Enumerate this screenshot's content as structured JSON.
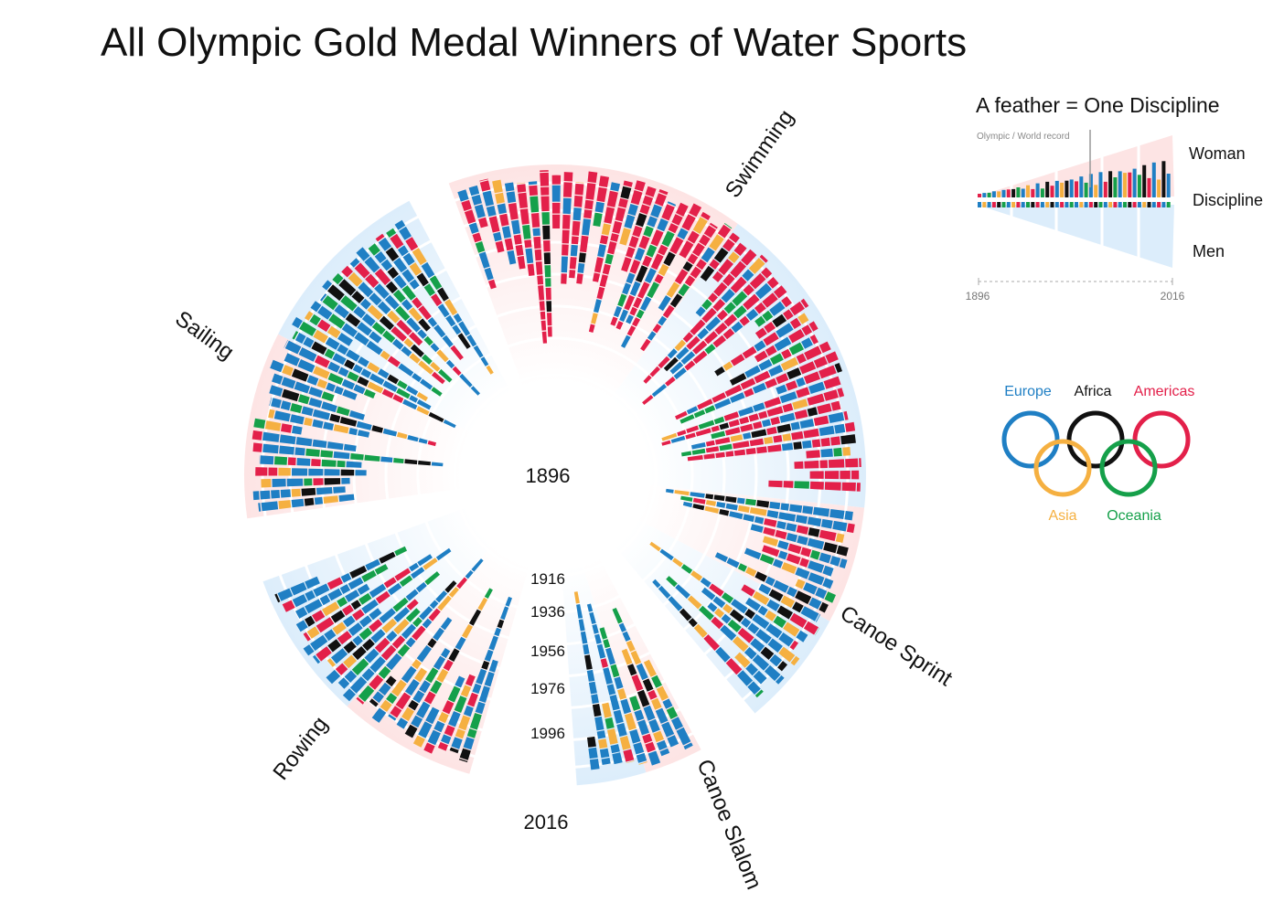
{
  "chart_data": {
    "type": "radial-bar",
    "title": "All Olympic Gold Medal Winners of Water Sports",
    "center_year": "1896",
    "year_ticks": [
      "1916",
      "1936",
      "1956",
      "1976",
      "1996"
    ],
    "end_year": "2016",
    "sports": [
      {
        "name": "Swimming"
      },
      {
        "name": "Canoe Sprint"
      },
      {
        "name": "Canoe Slalom"
      },
      {
        "name": "Rowing"
      },
      {
        "name": "Sailing"
      }
    ],
    "legend": {
      "feather_title": "A feather = One Discipline",
      "record_note": "Olympic / World record",
      "bands": [
        "Woman",
        "Discipline",
        "Men"
      ],
      "axis_start": "1896",
      "axis_end": "2016",
      "continents": [
        {
          "name": "Europe",
          "color": "#1f7fc4"
        },
        {
          "name": "Africa",
          "color": "#111111"
        },
        {
          "name": "Americas",
          "color": "#e3204a"
        },
        {
          "name": "Asia",
          "color": "#f5b041"
        },
        {
          "name": "Oceania",
          "color": "#15a04a"
        }
      ]
    },
    "colors": {
      "europe": "#1f7fc4",
      "africa": "#111111",
      "americas": "#e3204a",
      "asia": "#f5b041",
      "oceania": "#15a04a",
      "women_band": "#fde4e4",
      "men_band": "#dcedfb"
    }
  }
}
